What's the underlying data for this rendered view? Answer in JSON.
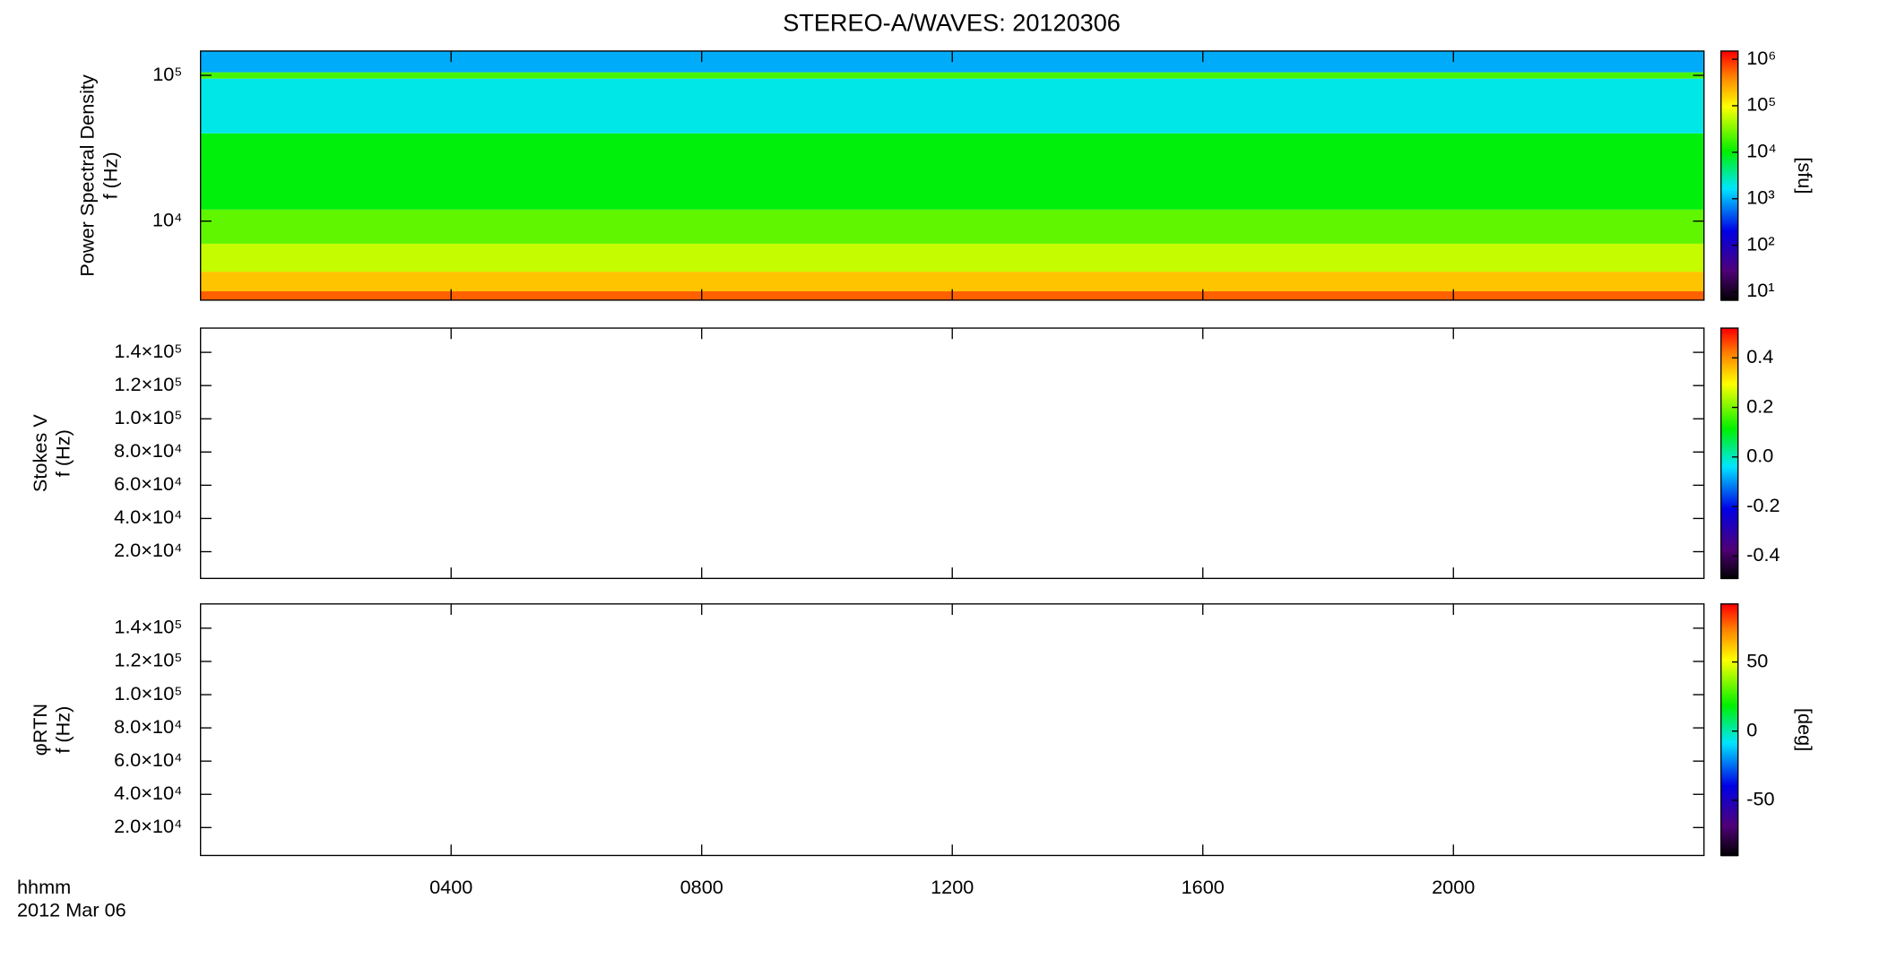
{
  "title": "STEREO-A/WAVES: 20120306",
  "x_axis": {
    "label": [
      "hhmm",
      "2012 Mar 06"
    ],
    "xlim": [
      0,
      24
    ],
    "xticks": [
      {
        "value": 4,
        "label": "0400"
      },
      {
        "value": 8,
        "label": "0800"
      },
      {
        "value": 12,
        "label": "1200"
      },
      {
        "value": 16,
        "label": "1600"
      },
      {
        "value": 20,
        "label": "2000"
      }
    ]
  },
  "chart_data": [
    {
      "type": "heatmap",
      "ylabel": [
        "Power Spectral Density",
        "f (Hz)"
      ],
      "ylog": true,
      "ylim": [
        2870,
        146800
      ],
      "yticks": [
        {
          "value": 10000,
          "label": "10⁴"
        },
        {
          "value": 100000,
          "label": "10⁵"
        }
      ],
      "y_bins": [
        2870,
        3300,
        4500,
        7000,
        12000,
        40000,
        95000,
        105000,
        146800
      ],
      "values": [
        600000,
        200000,
        60000,
        25000,
        10000,
        2000,
        20000,
        1000
      ],
      "colormap": "rainbow",
      "zlog": true,
      "zlim": [
        6.6,
        1500000
      ],
      "zlabel": "[sfu]",
      "zticks": [
        {
          "value": 10,
          "label": "10¹"
        },
        {
          "value": 100,
          "label": "10²"
        },
        {
          "value": 1000,
          "label": "10³"
        },
        {
          "value": 10000,
          "label": "10⁴"
        },
        {
          "value": 100000,
          "label": "10⁵"
        },
        {
          "value": 1000000,
          "label": "10⁶"
        }
      ]
    },
    {
      "type": "heatmap",
      "ylabel": [
        "Stokes V",
        "f (Hz)"
      ],
      "ylog": false,
      "ylim": [
        3900,
        154600
      ],
      "yticks": [
        {
          "value": 20000,
          "label": "2.0×10⁴"
        },
        {
          "value": 40000,
          "label": "4.0×10⁴"
        },
        {
          "value": 60000,
          "label": "6.0×10⁴"
        },
        {
          "value": 80000,
          "label": "8.0×10⁴"
        },
        {
          "value": 100000,
          "label": "1.0×10⁵"
        },
        {
          "value": 120000,
          "label": "1.2×10⁵"
        },
        {
          "value": 140000,
          "label": "1.4×10⁵"
        }
      ],
      "colormap": "rainbow",
      "zlog": false,
      "zlim": [
        -0.49,
        0.52
      ],
      "zticks": [
        -0.4,
        -0.2,
        {
          "value": 0,
          "label": "0.0"
        },
        0.2,
        0.4
      ]
    },
    {
      "type": "heatmap",
      "ylabel": [
        "φRTN",
        "f (Hz)"
      ],
      "ylog": false,
      "ylim": [
        3200,
        154600
      ],
      "yticks": [
        {
          "value": 20000,
          "label": "2.0×10⁴"
        },
        {
          "value": 40000,
          "label": "4.0×10⁴"
        },
        {
          "value": 60000,
          "label": "6.0×10⁴"
        },
        {
          "value": 80000,
          "label": "8.0×10⁴"
        },
        {
          "value": 100000,
          "label": "1.0×10⁵"
        },
        {
          "value": 120000,
          "label": "1.2×10⁵"
        },
        {
          "value": 140000,
          "label": "1.4×10⁵"
        }
      ],
      "colormap": "rainbow",
      "zlog": false,
      "zlim": [
        -90,
        92
      ],
      "zlabel": "[deg]",
      "zticks": [
        -50,
        0,
        50
      ]
    }
  ]
}
